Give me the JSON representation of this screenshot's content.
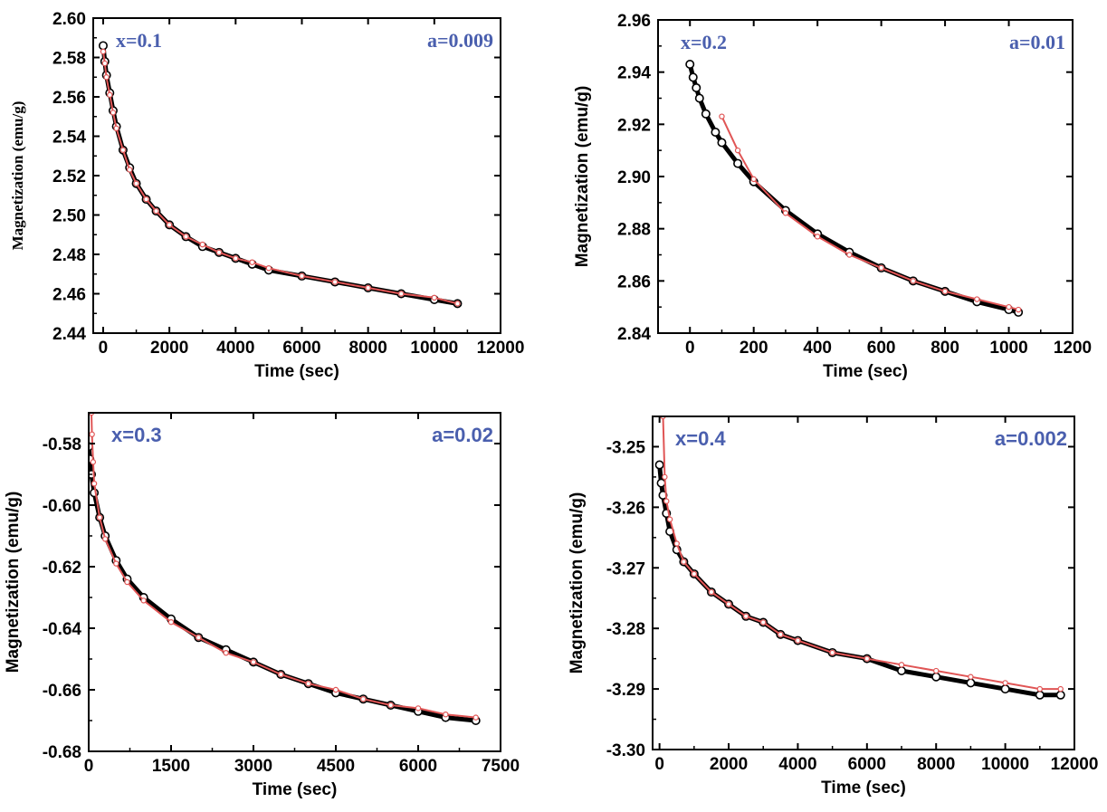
{
  "colors": {
    "annotation": "#4a5fae",
    "data_marker": "#000000",
    "fit_marker": "#e05555",
    "frame": "#000000"
  },
  "chart_data": [
    {
      "type": "scatter",
      "panel": "top-left",
      "xlabel": "Time (sec)",
      "ylabel": "Magnetization (emu/g)",
      "xlim": [
        -300,
        12000
      ],
      "ylim": [
        2.44,
        2.6
      ],
      "xticks": [
        0,
        2000,
        4000,
        6000,
        8000,
        10000,
        12000
      ],
      "yticks": [
        2.44,
        2.46,
        2.48,
        2.5,
        2.52,
        2.54,
        2.56,
        2.58,
        2.6
      ],
      "ytick_decimals": 2,
      "annotations": {
        "left": "x=0.1",
        "right": "a=0.009"
      },
      "series": [
        {
          "values_kind": "data",
          "x": [
            0,
            50,
            100,
            200,
            300,
            400,
            600,
            800,
            1000,
            1300,
            1600,
            2000,
            2500,
            3000,
            3500,
            4000,
            4500,
            5000,
            6000,
            7000,
            8000,
            9000,
            10000,
            10700
          ],
          "y": [
            2.586,
            2.578,
            2.571,
            2.562,
            2.553,
            2.545,
            2.533,
            2.524,
            2.516,
            2.508,
            2.502,
            2.495,
            2.489,
            2.484,
            2.481,
            2.478,
            2.475,
            2.472,
            2.469,
            2.466,
            2.463,
            2.46,
            2.457,
            2.455
          ]
        },
        {
          "values_kind": "fit",
          "x": [
            0,
            50,
            100,
            200,
            300,
            400,
            600,
            800,
            1000,
            1300,
            1600,
            2000,
            2500,
            3000,
            3500,
            4000,
            4500,
            5000,
            6000,
            7000,
            8000,
            9000,
            10000,
            10700
          ],
          "y": [
            2.583,
            2.577,
            2.57,
            2.561,
            2.552,
            2.544,
            2.533,
            2.523,
            2.516,
            2.508,
            2.502,
            2.495,
            2.489,
            2.485,
            2.481,
            2.478,
            2.476,
            2.473,
            2.469,
            2.466,
            2.463,
            2.46,
            2.458,
            2.455
          ]
        }
      ]
    },
    {
      "type": "scatter",
      "panel": "top-right",
      "xlabel": "Time (sec)",
      "ylabel": "Magnetization (emu/g)",
      "xlim": [
        -100,
        1200
      ],
      "ylim": [
        2.84,
        2.96
      ],
      "xticks": [
        0,
        200,
        400,
        600,
        800,
        1000,
        1200
      ],
      "yticks": [
        2.84,
        2.86,
        2.88,
        2.9,
        2.92,
        2.94,
        2.96
      ],
      "ytick_decimals": 2,
      "annotations": {
        "left": "x=0.2",
        "right": "a=0.01"
      },
      "series": [
        {
          "values_kind": "data",
          "x": [
            0,
            10,
            20,
            30,
            50,
            80,
            100,
            150,
            200,
            300,
            400,
            500,
            600,
            700,
            800,
            900,
            1000,
            1030
          ],
          "y": [
            2.943,
            2.938,
            2.934,
            2.93,
            2.924,
            2.917,
            2.913,
            2.905,
            2.898,
            2.887,
            2.878,
            2.871,
            2.865,
            2.86,
            2.856,
            2.852,
            2.849,
            2.848
          ]
        },
        {
          "values_kind": "fit",
          "x": [
            100,
            150,
            200,
            300,
            400,
            500,
            600,
            700,
            800,
            900,
            1000,
            1030
          ],
          "y": [
            2.923,
            2.91,
            2.899,
            2.886,
            2.877,
            2.87,
            2.865,
            2.86,
            2.856,
            2.853,
            2.85,
            2.849
          ]
        }
      ]
    },
    {
      "type": "scatter",
      "panel": "bottom-left",
      "xlabel": "Time (sec)",
      "ylabel": "Magnetization (emu/g)",
      "xlim": [
        0,
        7500
      ],
      "ylim": [
        -0.68,
        -0.57
      ],
      "xticks": [
        0,
        1500,
        3000,
        4500,
        6000,
        7500
      ],
      "yticks": [
        -0.68,
        -0.66,
        -0.64,
        -0.62,
        -0.6,
        -0.58
      ],
      "ytick_decimals": 2,
      "annotations": {
        "left": "x=0.3",
        "right": "a=0.02"
      },
      "series": [
        {
          "values_kind": "data",
          "x": [
            0,
            20,
            50,
            100,
            200,
            300,
            500,
            700,
            1000,
            1500,
            2000,
            2500,
            3000,
            3500,
            4000,
            4500,
            5000,
            5500,
            6000,
            6500,
            7050
          ],
          "y": [
            -0.581,
            -0.585,
            -0.59,
            -0.596,
            -0.604,
            -0.61,
            -0.618,
            -0.624,
            -0.63,
            -0.637,
            -0.643,
            -0.647,
            -0.651,
            -0.655,
            -0.658,
            -0.661,
            -0.663,
            -0.665,
            -0.667,
            -0.669,
            -0.67
          ]
        },
        {
          "values_kind": "fit",
          "x": [
            50,
            60,
            80,
            100,
            200,
            300,
            500,
            700,
            1000,
            1500,
            2000,
            2500,
            3000,
            3500,
            4000,
            4500,
            5000,
            5500,
            6000,
            6500,
            7050
          ],
          "y": [
            -0.57,
            -0.577,
            -0.586,
            -0.593,
            -0.604,
            -0.611,
            -0.619,
            -0.625,
            -0.631,
            -0.638,
            -0.643,
            -0.648,
            -0.651,
            -0.655,
            -0.658,
            -0.66,
            -0.663,
            -0.665,
            -0.666,
            -0.668,
            -0.669
          ]
        }
      ]
    },
    {
      "type": "scatter",
      "panel": "bottom-right",
      "xlabel": "Time (sec)",
      "ylabel": "Magnetization (emu/g)",
      "xlim": [
        -200,
        12000
      ],
      "ylim": [
        -3.3,
        -3.245
      ],
      "xticks": [
        0,
        2000,
        4000,
        6000,
        8000,
        10000,
        12000
      ],
      "yticks": [
        -3.3,
        -3.29,
        -3.28,
        -3.27,
        -3.26,
        -3.25
      ],
      "ytick_decimals": 2,
      "annotations": {
        "left": "x=0.4",
        "right": "a=0.002"
      },
      "series": [
        {
          "values_kind": "data",
          "x": [
            0,
            50,
            100,
            200,
            300,
            500,
            700,
            1000,
            1500,
            2000,
            2500,
            3000,
            3500,
            4000,
            5000,
            6000,
            7000,
            8000,
            9000,
            10000,
            11000,
            11600
          ],
          "y": [
            -3.253,
            -3.256,
            -3.258,
            -3.261,
            -3.264,
            -3.267,
            -3.269,
            -3.271,
            -3.274,
            -3.276,
            -3.278,
            -3.279,
            -3.281,
            -3.282,
            -3.284,
            -3.285,
            -3.287,
            -3.288,
            -3.289,
            -3.29,
            -3.291,
            -3.291
          ]
        },
        {
          "values_kind": "fit",
          "x": [
            100,
            150,
            200,
            300,
            500,
            700,
            1000,
            1500,
            2000,
            2500,
            3000,
            3500,
            4000,
            5000,
            6000,
            7000,
            8000,
            9000,
            10000,
            11000,
            11600
          ],
          "y": [
            -3.245,
            -3.255,
            -3.259,
            -3.262,
            -3.266,
            -3.269,
            -3.271,
            -3.274,
            -3.276,
            -3.278,
            -3.279,
            -3.281,
            -3.282,
            -3.284,
            -3.285,
            -3.286,
            -3.287,
            -3.288,
            -3.289,
            -3.29,
            -3.29
          ]
        }
      ]
    }
  ]
}
